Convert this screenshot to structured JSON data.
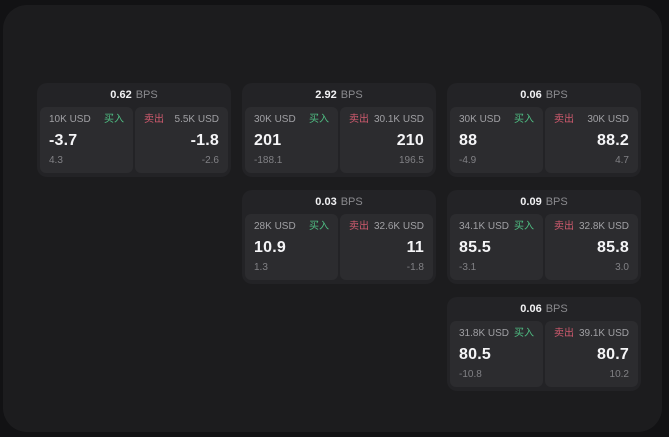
{
  "labels": {
    "bps_unit": "BPS",
    "buy": "买入",
    "sell": "卖出"
  },
  "colors": {
    "buy": "#4fbe83",
    "sell": "#cf5a6e",
    "panel_bg": "#1c1c1e",
    "card_bg": "#232326",
    "tile_bg": "#2c2c2f"
  },
  "cards": [
    {
      "row": 1,
      "col": 1,
      "bps": "0.62",
      "buy": {
        "size": "10K USD",
        "value": "-3.7",
        "delta": "4.3"
      },
      "sell": {
        "size": "5.5K USD",
        "value": "-1.8",
        "delta": "-2.6"
      }
    },
    {
      "row": 1,
      "col": 2,
      "bps": "2.92",
      "buy": {
        "size": "30K USD",
        "value": "201",
        "delta": "-188.1"
      },
      "sell": {
        "size": "30.1K USD",
        "value": "210",
        "delta": "196.5"
      }
    },
    {
      "row": 1,
      "col": 3,
      "bps": "0.06",
      "buy": {
        "size": "30K USD",
        "value": "88",
        "delta": "-4.9"
      },
      "sell": {
        "size": "30K USD",
        "value": "88.2",
        "delta": "4.7"
      }
    },
    {
      "row": 2,
      "col": 2,
      "bps": "0.03",
      "buy": {
        "size": "28K USD",
        "value": "10.9",
        "delta": "1.3"
      },
      "sell": {
        "size": "32.6K USD",
        "value": "11",
        "delta": "-1.8"
      }
    },
    {
      "row": 2,
      "col": 3,
      "bps": "0.09",
      "buy": {
        "size": "34.1K USD",
        "value": "85.5",
        "delta": "-3.1"
      },
      "sell": {
        "size": "32.8K USD",
        "value": "85.8",
        "delta": "3.0"
      }
    },
    {
      "row": 3,
      "col": 3,
      "bps": "0.06",
      "buy": {
        "size": "31.8K USD",
        "value": "80.5",
        "delta": "-10.8"
      },
      "sell": {
        "size": "39.1K USD",
        "value": "80.7",
        "delta": "10.2"
      }
    }
  ]
}
